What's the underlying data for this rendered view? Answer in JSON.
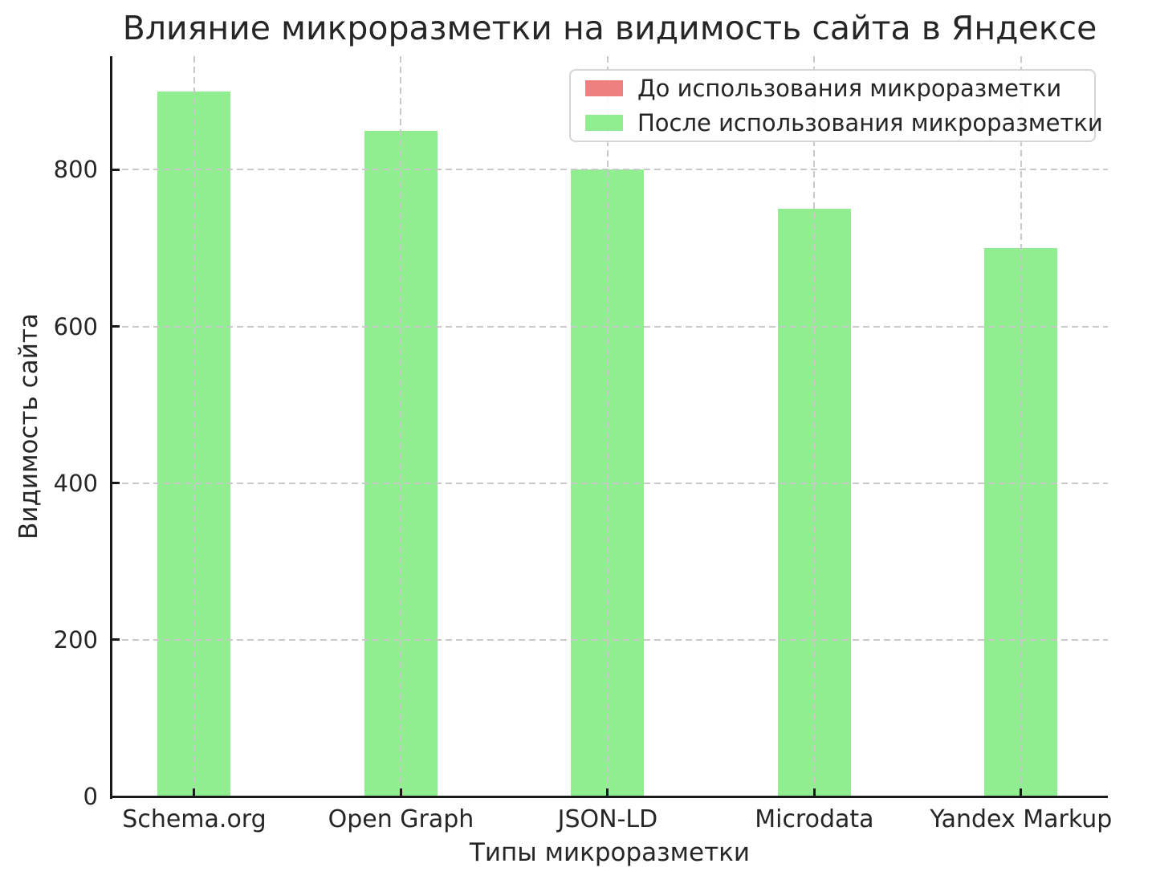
{
  "chart_data": {
    "type": "bar",
    "title": "Влияние микроразметки на видимость сайта в Яндексе",
    "xlabel": "Типы микроразметки",
    "ylabel": "Видимость сайта",
    "categories": [
      "Schema.org",
      "Open Graph",
      "JSON-LD",
      "Microdata",
      "Yandex Markup"
    ],
    "series": [
      {
        "name": "До использования микроразметки",
        "color": "#F08080",
        "bars_visible": false,
        "values": []
      },
      {
        "name": "После использования микроразметки",
        "color": "#90EE90",
        "bars_visible": true,
        "values": [
          900,
          850,
          800,
          750,
          700
        ]
      }
    ],
    "yticks": [
      0,
      200,
      400,
      600,
      800
    ],
    "ylim": [
      0,
      945
    ],
    "grid": true,
    "grid_style": "dashed",
    "grid_above_bars": true,
    "legend_position": "upper right",
    "colors": {
      "axis": "#1a1a1a",
      "grid": "#c9c9c9",
      "text": "#262626",
      "background": "#ffffff"
    }
  }
}
